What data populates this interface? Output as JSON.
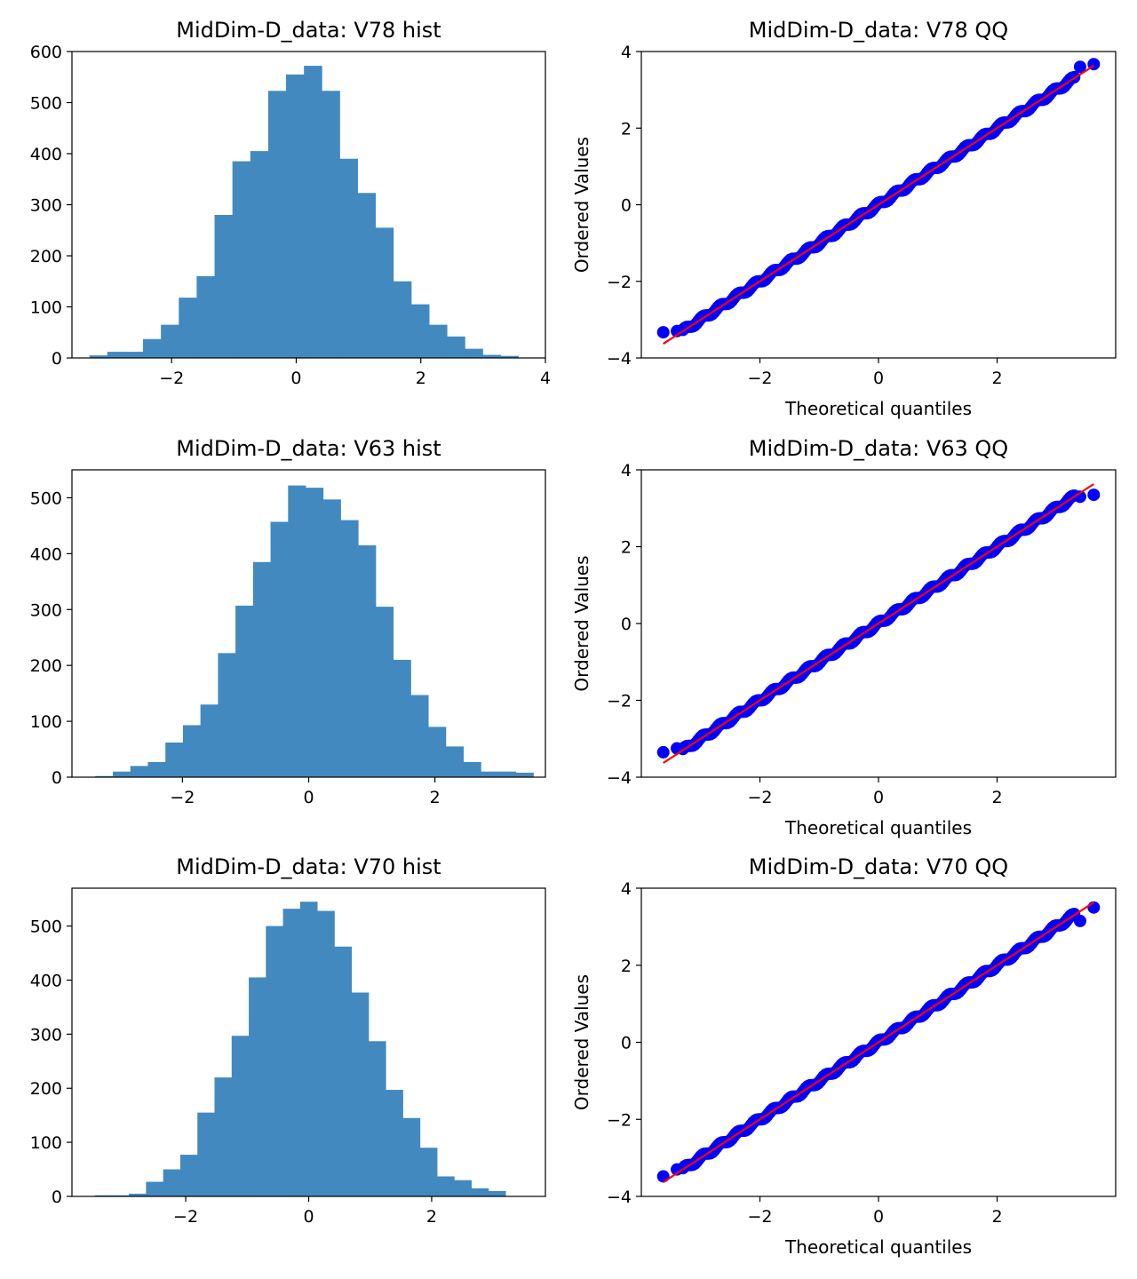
{
  "colors": {
    "hist_fill": "#4289c0",
    "qq_points": "#0000ff",
    "qq_line": "#ff0000",
    "axes": "#000000",
    "background": "#ffffff"
  },
  "chart_data": [
    {
      "type": "bar",
      "title": "MidDim-D_data: V78 hist",
      "xlabel": "",
      "ylabel": "",
      "xlim": [
        -3.6,
        4.0
      ],
      "ylim": [
        0,
        600
      ],
      "xticks": [
        -2,
        0,
        2,
        4
      ],
      "yticks": [
        0,
        100,
        200,
        300,
        400,
        500,
        600
      ],
      "bin_start": -3.32,
      "bin_width": 0.287,
      "values": [
        5,
        12,
        12,
        37,
        65,
        118,
        160,
        280,
        385,
        405,
        523,
        555,
        572,
        523,
        390,
        323,
        255,
        150,
        105,
        65,
        42,
        18,
        6,
        4
      ]
    },
    {
      "type": "scatter",
      "title": "MidDim-D_data: V78 QQ",
      "xlabel": "Theoretical quantiles",
      "ylabel": "Ordered Values",
      "xlim": [
        -4.0,
        4.0
      ],
      "ylim": [
        -4.0,
        4.0
      ],
      "xticks": [
        -2,
        0,
        2
      ],
      "yticks": [
        -4,
        -2,
        0,
        2,
        4
      ],
      "x_range": [
        -3.63,
        3.63
      ],
      "fit_line": {
        "slope": 1.0,
        "intercept": 0.0
      },
      "outliers": [
        [
          -3.63,
          -3.33
        ],
        [
          -3.4,
          -3.3
        ],
        [
          3.4,
          3.6
        ],
        [
          3.63,
          3.67
        ]
      ]
    },
    {
      "type": "bar",
      "title": "MidDim-D_data: V63 hist",
      "xlabel": "",
      "ylabel": "",
      "xlim": [
        -3.75,
        3.75
      ],
      "ylim": [
        0,
        550
      ],
      "xticks": [
        -2,
        0,
        2
      ],
      "yticks": [
        0,
        100,
        200,
        300,
        400,
        500
      ],
      "bin_start": -3.38,
      "bin_width": 0.2776,
      "values": [
        2,
        10,
        20,
        27,
        62,
        93,
        130,
        222,
        307,
        385,
        457,
        522,
        518,
        497,
        460,
        415,
        305,
        210,
        147,
        90,
        55,
        27,
        10,
        10,
        8
      ]
    },
    {
      "type": "scatter",
      "title": "MidDim-D_data: V63 QQ",
      "xlabel": "Theoretical quantiles",
      "ylabel": "Ordered Values",
      "xlim": [
        -4.0,
        4.0
      ],
      "ylim": [
        -4.0,
        4.0
      ],
      "xticks": [
        -2,
        0,
        2
      ],
      "yticks": [
        -4,
        -2,
        0,
        2,
        4
      ],
      "x_range": [
        -3.63,
        3.63
      ],
      "fit_line": {
        "slope": 1.0,
        "intercept": 0.0
      },
      "outliers": [
        [
          -3.63,
          -3.35
        ],
        [
          -3.4,
          -3.25
        ],
        [
          3.4,
          3.3
        ],
        [
          3.63,
          3.35
        ]
      ]
    },
    {
      "type": "bar",
      "title": "MidDim-D_data: V70 hist",
      "xlabel": "",
      "ylabel": "",
      "xlim": [
        -3.85,
        3.85
      ],
      "ylim": [
        0,
        570
      ],
      "xticks": [
        -2,
        0,
        2
      ],
      "yticks": [
        0,
        100,
        200,
        300,
        400,
        500
      ],
      "bin_start": -3.48,
      "bin_width": 0.2784,
      "values": [
        2,
        2,
        5,
        27,
        50,
        77,
        155,
        220,
        297,
        405,
        500,
        532,
        545,
        528,
        462,
        377,
        287,
        197,
        145,
        90,
        37,
        30,
        15,
        10
      ]
    },
    {
      "type": "scatter",
      "title": "MidDim-D_data: V70 QQ",
      "xlabel": "Theoretical quantiles",
      "ylabel": "Ordered Values",
      "xlim": [
        -4.0,
        4.0
      ],
      "ylim": [
        -4.0,
        4.0
      ],
      "xticks": [
        -2,
        0,
        2
      ],
      "yticks": [
        -4,
        -2,
        0,
        2,
        4
      ],
      "x_range": [
        -3.63,
        3.63
      ],
      "fit_line": {
        "slope": 1.0,
        "intercept": 0.0
      },
      "outliers": [
        [
          -3.63,
          -3.48
        ],
        [
          -3.4,
          -3.3
        ],
        [
          3.4,
          3.15
        ],
        [
          3.63,
          3.5
        ]
      ]
    }
  ]
}
